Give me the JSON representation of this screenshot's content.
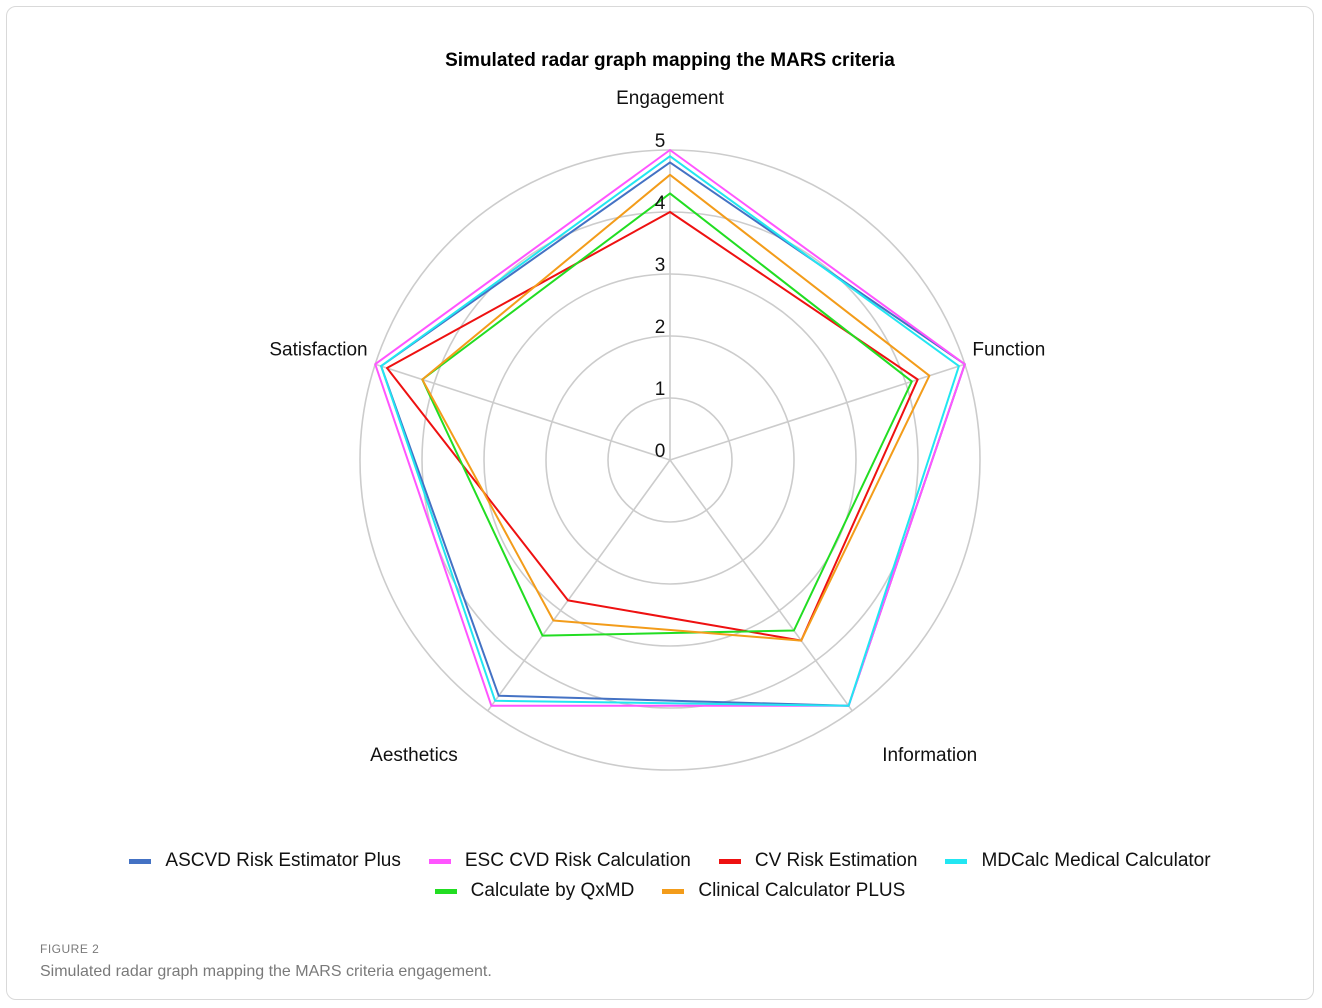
{
  "figure": {
    "label": "FIGURE 2",
    "caption": "Simulated radar graph mapping the MARS criteria engagement."
  },
  "chart_data": {
    "type": "radar",
    "title": "Simulated radar graph mapping the MARS criteria",
    "axes": [
      "Engagement",
      "Function",
      "Information",
      "Aesthetics",
      "Satisfaction"
    ],
    "rlim": [
      0,
      5
    ],
    "ticks": [
      "0",
      "1",
      "2",
      "3",
      "4",
      "5"
    ],
    "grid": true,
    "legend_position": "bottom",
    "series": [
      {
        "name": "ASCVD Risk Estimator Plus",
        "color": "#4472c4",
        "values": [
          4.8,
          5.0,
          4.9,
          4.7,
          4.9
        ]
      },
      {
        "name": "ESC CVD Risk Calculation",
        "color": "#ff55ff",
        "values": [
          5.0,
          5.0,
          4.9,
          4.9,
          5.0
        ]
      },
      {
        "name": "CV Risk Estimation",
        "color": "#ee1111",
        "values": [
          4.0,
          4.2,
          3.6,
          2.8,
          4.8
        ]
      },
      {
        "name": "MDCalc Medical Calculator",
        "color": "#22e6f2",
        "values": [
          4.9,
          4.9,
          4.9,
          4.8,
          4.9
        ]
      },
      {
        "name": "Calculate by QxMD",
        "color": "#22dd22",
        "values": [
          4.3,
          4.1,
          3.4,
          3.5,
          4.2
        ]
      },
      {
        "name": "Clinical Calculator PLUS",
        "color": "#f39c1a",
        "values": [
          4.6,
          4.4,
          3.6,
          3.2,
          4.2
        ]
      }
    ]
  }
}
